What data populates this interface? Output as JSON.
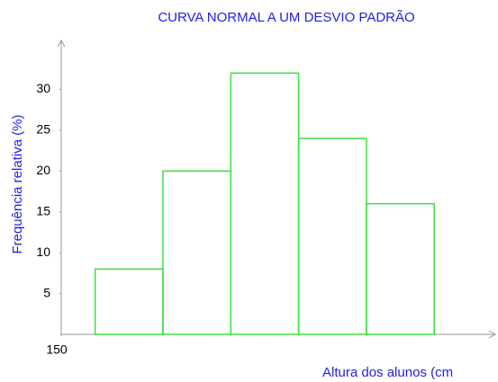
{
  "chart_data": {
    "type": "histogram",
    "title": "CURVA NORMAL A UM DESVIO PADRÃO",
    "y_label": "Frequência relativa  (%)",
    "x_label": "Altura dos alunos (cm",
    "bins": [
      155,
      165,
      175,
      185,
      195,
      205
    ],
    "values": [
      8,
      20,
      32,
      24,
      16
    ],
    "color": "#3ee03e",
    "xlim": [
      150,
      214
    ],
    "xticks": [
      150
    ],
    "ylim": [
      0,
      36
    ],
    "yticks": [
      5,
      10,
      15,
      20,
      25,
      30
    ],
    "grid": false
  }
}
